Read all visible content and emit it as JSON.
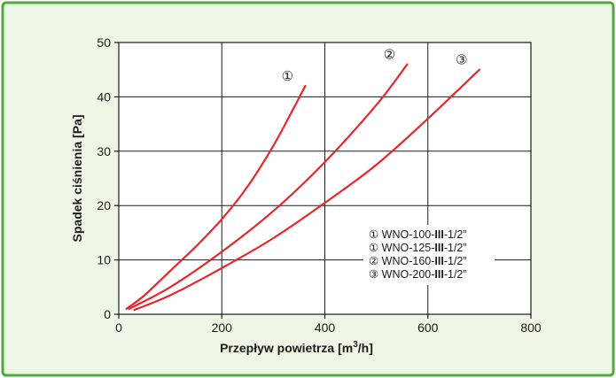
{
  "chart_data": {
    "type": "line",
    "xlabel_main": "Przepływ  powietrza [m",
    "xlabel_sup": "3",
    "xlabel_tail": "/h]",
    "ylabel": "Spadek  ciśnienia [Pa]",
    "xlim": [
      0,
      800
    ],
    "ylim": [
      0,
      50
    ],
    "x_ticks": [
      0,
      200,
      400,
      600,
      800
    ],
    "y_ticks": [
      0,
      10,
      20,
      30,
      40,
      50
    ],
    "x_tick_labels": [
      "0",
      "200",
      "400",
      "600",
      "800"
    ],
    "y_tick_labels": [
      "0",
      "10",
      "20",
      "30",
      "40",
      "50"
    ],
    "grid": true,
    "line_color": "#e8262d",
    "panel_background": "#eef7e6",
    "panel_border": "#4faa3c",
    "series": [
      {
        "marker": "①",
        "x": [
          15,
          50,
          100,
          150,
          200,
          250,
          300,
          340,
          362
        ],
        "y": [
          1,
          3.5,
          8,
          12.5,
          17.5,
          23.5,
          31,
          38,
          42
        ]
      },
      {
        "marker": "②",
        "x": [
          20,
          100,
          200,
          300,
          400,
          500,
          560
        ],
        "y": [
          1,
          5,
          11.5,
          19,
          28,
          38.5,
          46
        ]
      },
      {
        "marker": "③",
        "x": [
          30,
          100,
          200,
          300,
          400,
          500,
          600,
          700
        ],
        "y": [
          0.8,
          3.5,
          8.5,
          14,
          20.5,
          27.5,
          36,
          45
        ]
      }
    ],
    "legend": {
      "position": "right-lower",
      "entries": [
        {
          "marker": "①",
          "pre": "WNO-100-",
          "bold": "III",
          "post": "-1/2”"
        },
        {
          "marker": "①",
          "pre": "WNO-125-",
          "bold": "III",
          "post": "-1/2”"
        },
        {
          "marker": "②",
          "pre": "WNO-160-",
          "bold": "III",
          "post": "-1/2”"
        },
        {
          "marker": "③",
          "pre": "WNO-200-",
          "bold": "III",
          "post": "-1/2”"
        }
      ]
    }
  }
}
